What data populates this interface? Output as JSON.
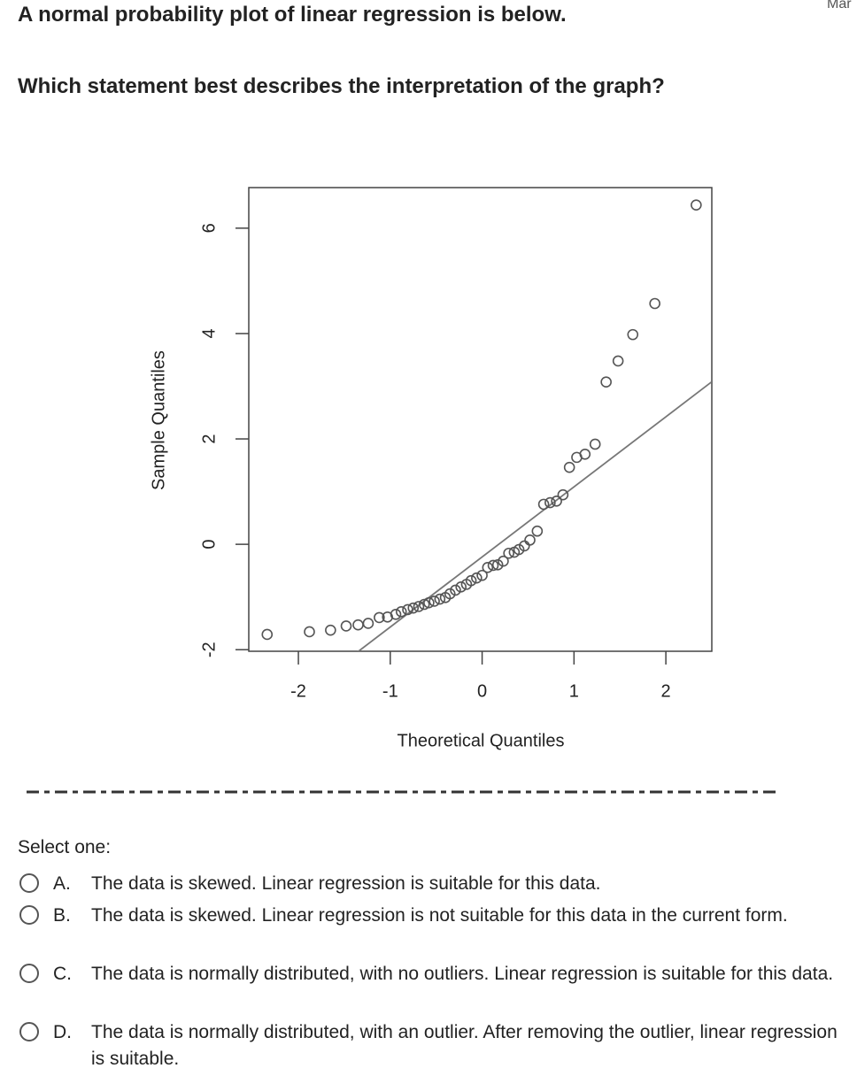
{
  "header": {
    "title": "A normal probability plot of linear regression is below.",
    "corner": "Mar"
  },
  "question": "Which statement best describes the interpretation of the graph?",
  "chart_data": {
    "type": "scatter",
    "xlabel": "Theoretical Quantiles",
    "ylabel": "Sample Quantiles",
    "x": [
      -2.34,
      -1.88,
      -1.65,
      -1.48,
      -1.35,
      -1.24,
      -1.12,
      -1.03,
      -0.94,
      -0.88,
      -0.81,
      -0.75,
      -0.69,
      -0.63,
      -0.58,
      -0.52,
      -0.46,
      -0.4,
      -0.35,
      -0.29,
      -0.23,
      -0.17,
      -0.12,
      -0.06,
      0,
      0.06,
      0.12,
      0.17,
      0.23,
      0.29,
      0.35,
      0.4,
      0.46,
      0.52,
      0.6,
      0.67,
      0.74,
      0.81,
      0.88,
      0.95,
      1.03,
      1.12,
      1.23,
      1.35,
      1.48,
      1.64,
      1.88,
      2.33
    ],
    "values": [
      -1.71,
      -1.66,
      -1.63,
      -1.55,
      -1.53,
      -1.5,
      -1.39,
      -1.38,
      -1.33,
      -1.28,
      -1.24,
      -1.21,
      -1.18,
      -1.14,
      -1.11,
      -1.08,
      -1.04,
      -1.01,
      -0.94,
      -0.87,
      -0.81,
      -0.76,
      -0.69,
      -0.64,
      -0.59,
      -0.44,
      -0.4,
      -0.39,
      -0.32,
      -0.17,
      -0.15,
      -0.1,
      -0.03,
      0.08,
      0.25,
      0.76,
      0.79,
      0.82,
      0.94,
      1.46,
      1.65,
      1.71,
      1.9,
      3.08,
      3.48,
      3.98,
      4.57,
      6.44
    ],
    "color": "#555555",
    "ref_line": {
      "slope": 1.33,
      "intercept": -0.24
    },
    "xlim": [
      -2.54,
      2.5
    ],
    "xticks": [
      -2,
      -1,
      0,
      1,
      2
    ],
    "ylim": [
      -2.03,
      6.77
    ],
    "yticks": [
      -2,
      0,
      2,
      4,
      6
    ]
  },
  "instruction": "Select one:",
  "options": [
    {
      "letter": "A.",
      "text": "The data is skewed. Linear regression is suitable for this data."
    },
    {
      "letter": "B.",
      "text": "The data is skewed. Linear regression is not suitable for this data in the current form."
    },
    {
      "letter": "C.",
      "text": "The data is normally distributed, with no outliers. Linear regression is suitable for this data."
    },
    {
      "letter": "D.",
      "text": "The data is normally distributed, with an outlier. After removing the outlier, linear regression is suitable."
    }
  ]
}
